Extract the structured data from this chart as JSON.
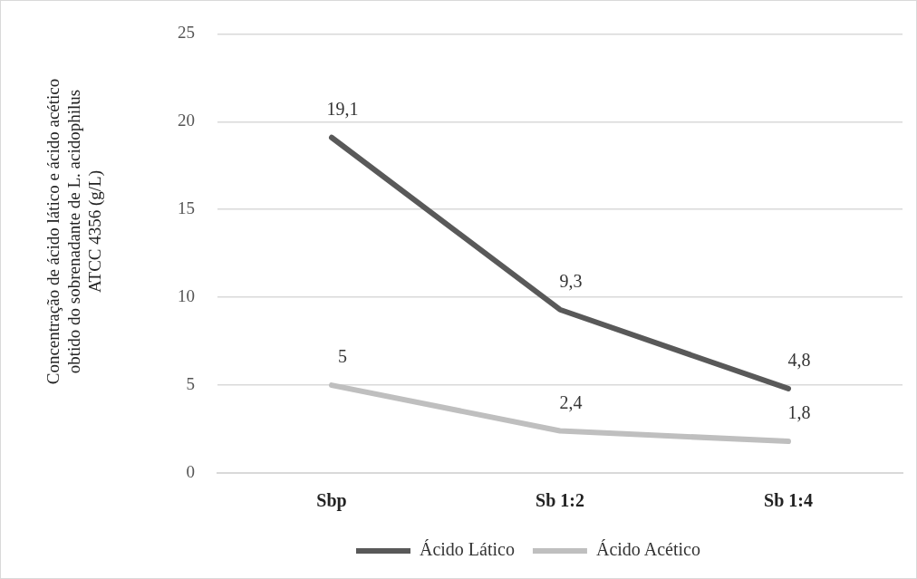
{
  "chart_data": {
    "type": "line",
    "ylabel": "Concentração de ácido lático e ácido acético obtido do sobrenadante de L. acidophilus ATCC 4356 (g/L)",
    "categories": [
      "Sbp",
      "Sb 1:2",
      "Sb 1:4"
    ],
    "series": [
      {
        "name": "Ácido Lático",
        "color": "#595959",
        "values": [
          19.1,
          9.3,
          4.8
        ],
        "value_labels": [
          "19,1",
          "9,3",
          "4,8"
        ]
      },
      {
        "name": "Ácido Acético",
        "color": "#bfbfbf",
        "values": [
          5,
          2.4,
          1.8
        ],
        "value_labels": [
          "5",
          "2,4",
          "1,8"
        ]
      }
    ],
    "ylim": [
      0,
      25
    ],
    "yticks": [
      0,
      5,
      10,
      15,
      20,
      25
    ],
    "grid": "y",
    "legend": "bottom",
    "marker": "none",
    "line_style": "solid"
  }
}
